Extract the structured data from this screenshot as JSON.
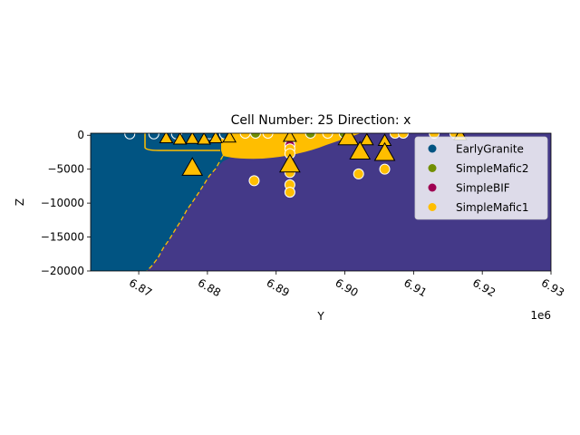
{
  "chart_data": {
    "type": "scatter",
    "title": "Cell Number: 25 Direction: x",
    "xlabel": "Y",
    "ylabel": "Z",
    "x_offset_label": "1e6",
    "xlim": [
      6.863,
      6.93
    ],
    "ylim": [
      -20000,
      300
    ],
    "xticks": [
      6.87,
      6.88,
      6.89,
      6.9,
      6.91,
      6.92,
      6.93
    ],
    "xtick_labels": [
      "6.87",
      "6.88",
      "6.89",
      "6.90",
      "6.91",
      "6.92",
      "6.93"
    ],
    "yticks": [
      0,
      -5000,
      -10000,
      -15000,
      -20000
    ],
    "ytick_labels": [
      "0",
      "−5000",
      "−10000",
      "−15000",
      "−20000"
    ],
    "legend_position": "top-right",
    "colors": {
      "EarlyGranite": "#015482",
      "SimpleMafic2": "#728f02",
      "SimpleBIF": "#9f0052",
      "SimpleMafic1": "#ffbe00",
      "Basement": "#443988"
    },
    "legend": [
      {
        "name": "EarlyGranite",
        "color": "#015482"
      },
      {
        "name": "SimpleMafic2",
        "color": "#728f02"
      },
      {
        "name": "SimpleBIF",
        "color": "#9f0052"
      },
      {
        "name": "SimpleMafic1",
        "color": "#ffbe00"
      }
    ],
    "surface_points": [
      {
        "x": 6.8687,
        "y": 200,
        "color": "#015482"
      },
      {
        "x": 6.8722,
        "y": 200,
        "color": "#015482"
      },
      {
        "x": 6.8755,
        "y": 200,
        "color": "#015482"
      },
      {
        "x": 6.8803,
        "y": 200,
        "color": "#015482"
      },
      {
        "x": 6.8825,
        "y": 200,
        "color": "#015482"
      },
      {
        "x": 6.8855,
        "y": 300,
        "color": "#ffbe00"
      },
      {
        "x": 6.887,
        "y": 300,
        "color": "#728f02"
      },
      {
        "x": 6.8888,
        "y": 300,
        "color": "#ffbe00"
      },
      {
        "x": 6.895,
        "y": 300,
        "color": "#728f02"
      },
      {
        "x": 6.8975,
        "y": 300,
        "color": "#ffbe00"
      },
      {
        "x": 6.8999,
        "y": 300,
        "color": "#728f02"
      },
      {
        "x": 6.892,
        "y": -800,
        "color": "#9f0052"
      },
      {
        "x": 6.892,
        "y": -1500,
        "color": "#9f0052"
      },
      {
        "x": 6.892,
        "y": -2000,
        "color": "#ffbe00"
      },
      {
        "x": 6.892,
        "y": -2700,
        "color": "#ffbe00"
      },
      {
        "x": 6.892,
        "y": -5500,
        "color": "#ffbe00"
      },
      {
        "x": 6.892,
        "y": -7300,
        "color": "#ffbe00"
      },
      {
        "x": 6.892,
        "y": -8400,
        "color": "#ffbe00"
      },
      {
        "x": 6.8868,
        "y": -6700,
        "color": "#ffbe00"
      },
      {
        "x": 6.902,
        "y": -5700,
        "color": "#ffbe00"
      },
      {
        "x": 6.9058,
        "y": -5000,
        "color": "#ffbe00"
      },
      {
        "x": 6.9073,
        "y": 300,
        "color": "#ffbe00"
      },
      {
        "x": 6.9085,
        "y": 300,
        "color": "#ffbe00"
      },
      {
        "x": 6.913,
        "y": 300,
        "color": "#ffbe00"
      },
      {
        "x": 6.916,
        "y": 300,
        "color": "#ffbe00"
      }
    ],
    "orientations": [
      {
        "x": 6.8778,
        "y": -4800,
        "color": "#ffbe00",
        "size": "large"
      },
      {
        "x": 6.892,
        "y": -4300,
        "color": "#ffbe00",
        "size": "large"
      },
      {
        "x": 6.9005,
        "y": -300,
        "color": "#ffbe00",
        "size": "large"
      },
      {
        "x": 6.9032,
        "y": -700,
        "color": "#ffbe00",
        "size": "small"
      },
      {
        "x": 6.9058,
        "y": -800,
        "color": "#ffbe00",
        "size": "small"
      },
      {
        "x": 6.9022,
        "y": -2400,
        "color": "#ffbe00",
        "size": "large"
      },
      {
        "x": 6.9058,
        "y": -2600,
        "color": "#ffbe00",
        "size": "large"
      },
      {
        "x": 6.9168,
        "y": 0,
        "color": "#ffbe00",
        "size": "small"
      },
      {
        "x": 6.892,
        "y": -200,
        "color": "#ffbe00",
        "size": "small"
      },
      {
        "x": 6.874,
        "y": -400,
        "color": "#ffbe00",
        "size": "small"
      },
      {
        "x": 6.876,
        "y": -600,
        "color": "#ffbe00",
        "size": "small"
      },
      {
        "x": 6.8778,
        "y": -500,
        "color": "#ffbe00",
        "size": "small"
      },
      {
        "x": 6.8795,
        "y": -600,
        "color": "#ffbe00",
        "size": "small"
      },
      {
        "x": 6.8812,
        "y": -400,
        "color": "#ffbe00",
        "size": "small"
      },
      {
        "x": 6.8832,
        "y": -300,
        "color": "#ffbe00",
        "size": "small"
      }
    ]
  }
}
